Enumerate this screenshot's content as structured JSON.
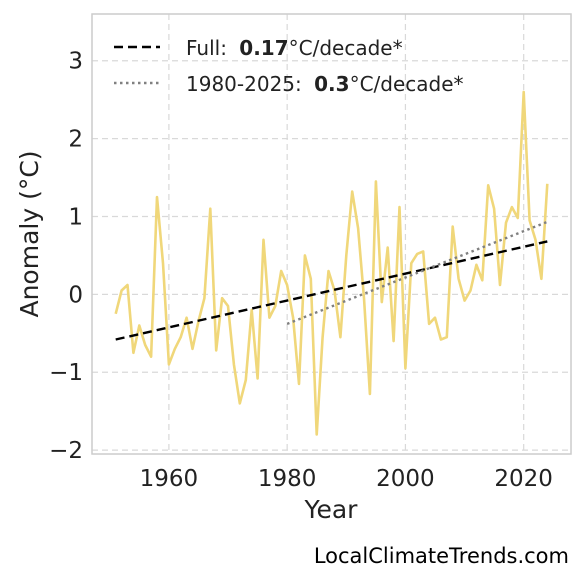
{
  "chart_data": {
    "type": "line",
    "xlabel": "Year",
    "ylabel": "Anomaly (°C)",
    "xlim": [
      1947,
      2028
    ],
    "ylim": [
      -2.05,
      3.6
    ],
    "xticks": [
      1960,
      1980,
      2000,
      2020
    ],
    "yticks": [
      -2,
      -1,
      0,
      1,
      2,
      3
    ],
    "ytick_labels": [
      "−2",
      "−1",
      "0",
      "1",
      "2",
      "3"
    ],
    "grid": true,
    "legend_position": "top-left",
    "series": [
      {
        "color": "#f0d77a",
        "x": [
          1951,
          1952,
          1953,
          1954,
          1955,
          1956,
          1957,
          1958,
          1959,
          1960,
          1961,
          1962,
          1963,
          1964,
          1965,
          1966,
          1967,
          1968,
          1969,
          1970,
          1971,
          1972,
          1973,
          1974,
          1975,
          1976,
          1977,
          1978,
          1979,
          1980,
          1981,
          1982,
          1983,
          1984,
          1985,
          1986,
          1987,
          1988,
          1989,
          1990,
          1991,
          1992,
          1993,
          1994,
          1995,
          1996,
          1997,
          1998,
          1999,
          2000,
          2001,
          2002,
          2003,
          2004,
          2005,
          2006,
          2007,
          2008,
          2009,
          2010,
          2011,
          2012,
          2013,
          2014,
          2015,
          2016,
          2017,
          2018,
          2019,
          2020,
          2021,
          2022,
          2023,
          2024
        ],
        "y": [
          -0.25,
          0.05,
          0.12,
          -0.75,
          -0.4,
          -0.65,
          -0.8,
          1.25,
          0.4,
          -0.9,
          -0.7,
          -0.55,
          -0.3,
          -0.7,
          -0.35,
          -0.05,
          1.1,
          -0.72,
          -0.05,
          -0.15,
          -0.9,
          -1.4,
          -1.1,
          -0.2,
          -1.08,
          0.7,
          -0.3,
          -0.15,
          0.3,
          0.12,
          -0.3,
          -1.15,
          0.5,
          0.2,
          -1.8,
          -0.55,
          0.3,
          0.05,
          -0.55,
          0.5,
          1.32,
          0.85,
          -0.05,
          -1.28,
          1.45,
          -0.1,
          0.6,
          -0.6,
          1.12,
          -0.95,
          0.4,
          0.52,
          0.55,
          -0.38,
          -0.3,
          -0.58,
          -0.55,
          0.87,
          0.2,
          -0.08,
          0.05,
          0.38,
          0.18,
          1.4,
          1.1,
          0.12,
          0.92,
          1.12,
          0.98,
          2.6,
          0.95,
          0.7,
          0.2,
          1.42
        ]
      },
      {
        "name": "Full:",
        "value": "0.17",
        "unit": "°C/decade*",
        "style": "dashed",
        "color": "#000000",
        "x": [
          1951,
          2024
        ],
        "y": [
          -0.58,
          0.68
        ]
      },
      {
        "name": "1980-2025:",
        "value": "0.3",
        "unit": "°C/decade*",
        "style": "dotted",
        "color": "#808080",
        "x": [
          1980,
          2024
        ],
        "y": [
          -0.38,
          0.93
        ]
      }
    ]
  },
  "watermark": "LocalClimateTrends.com"
}
